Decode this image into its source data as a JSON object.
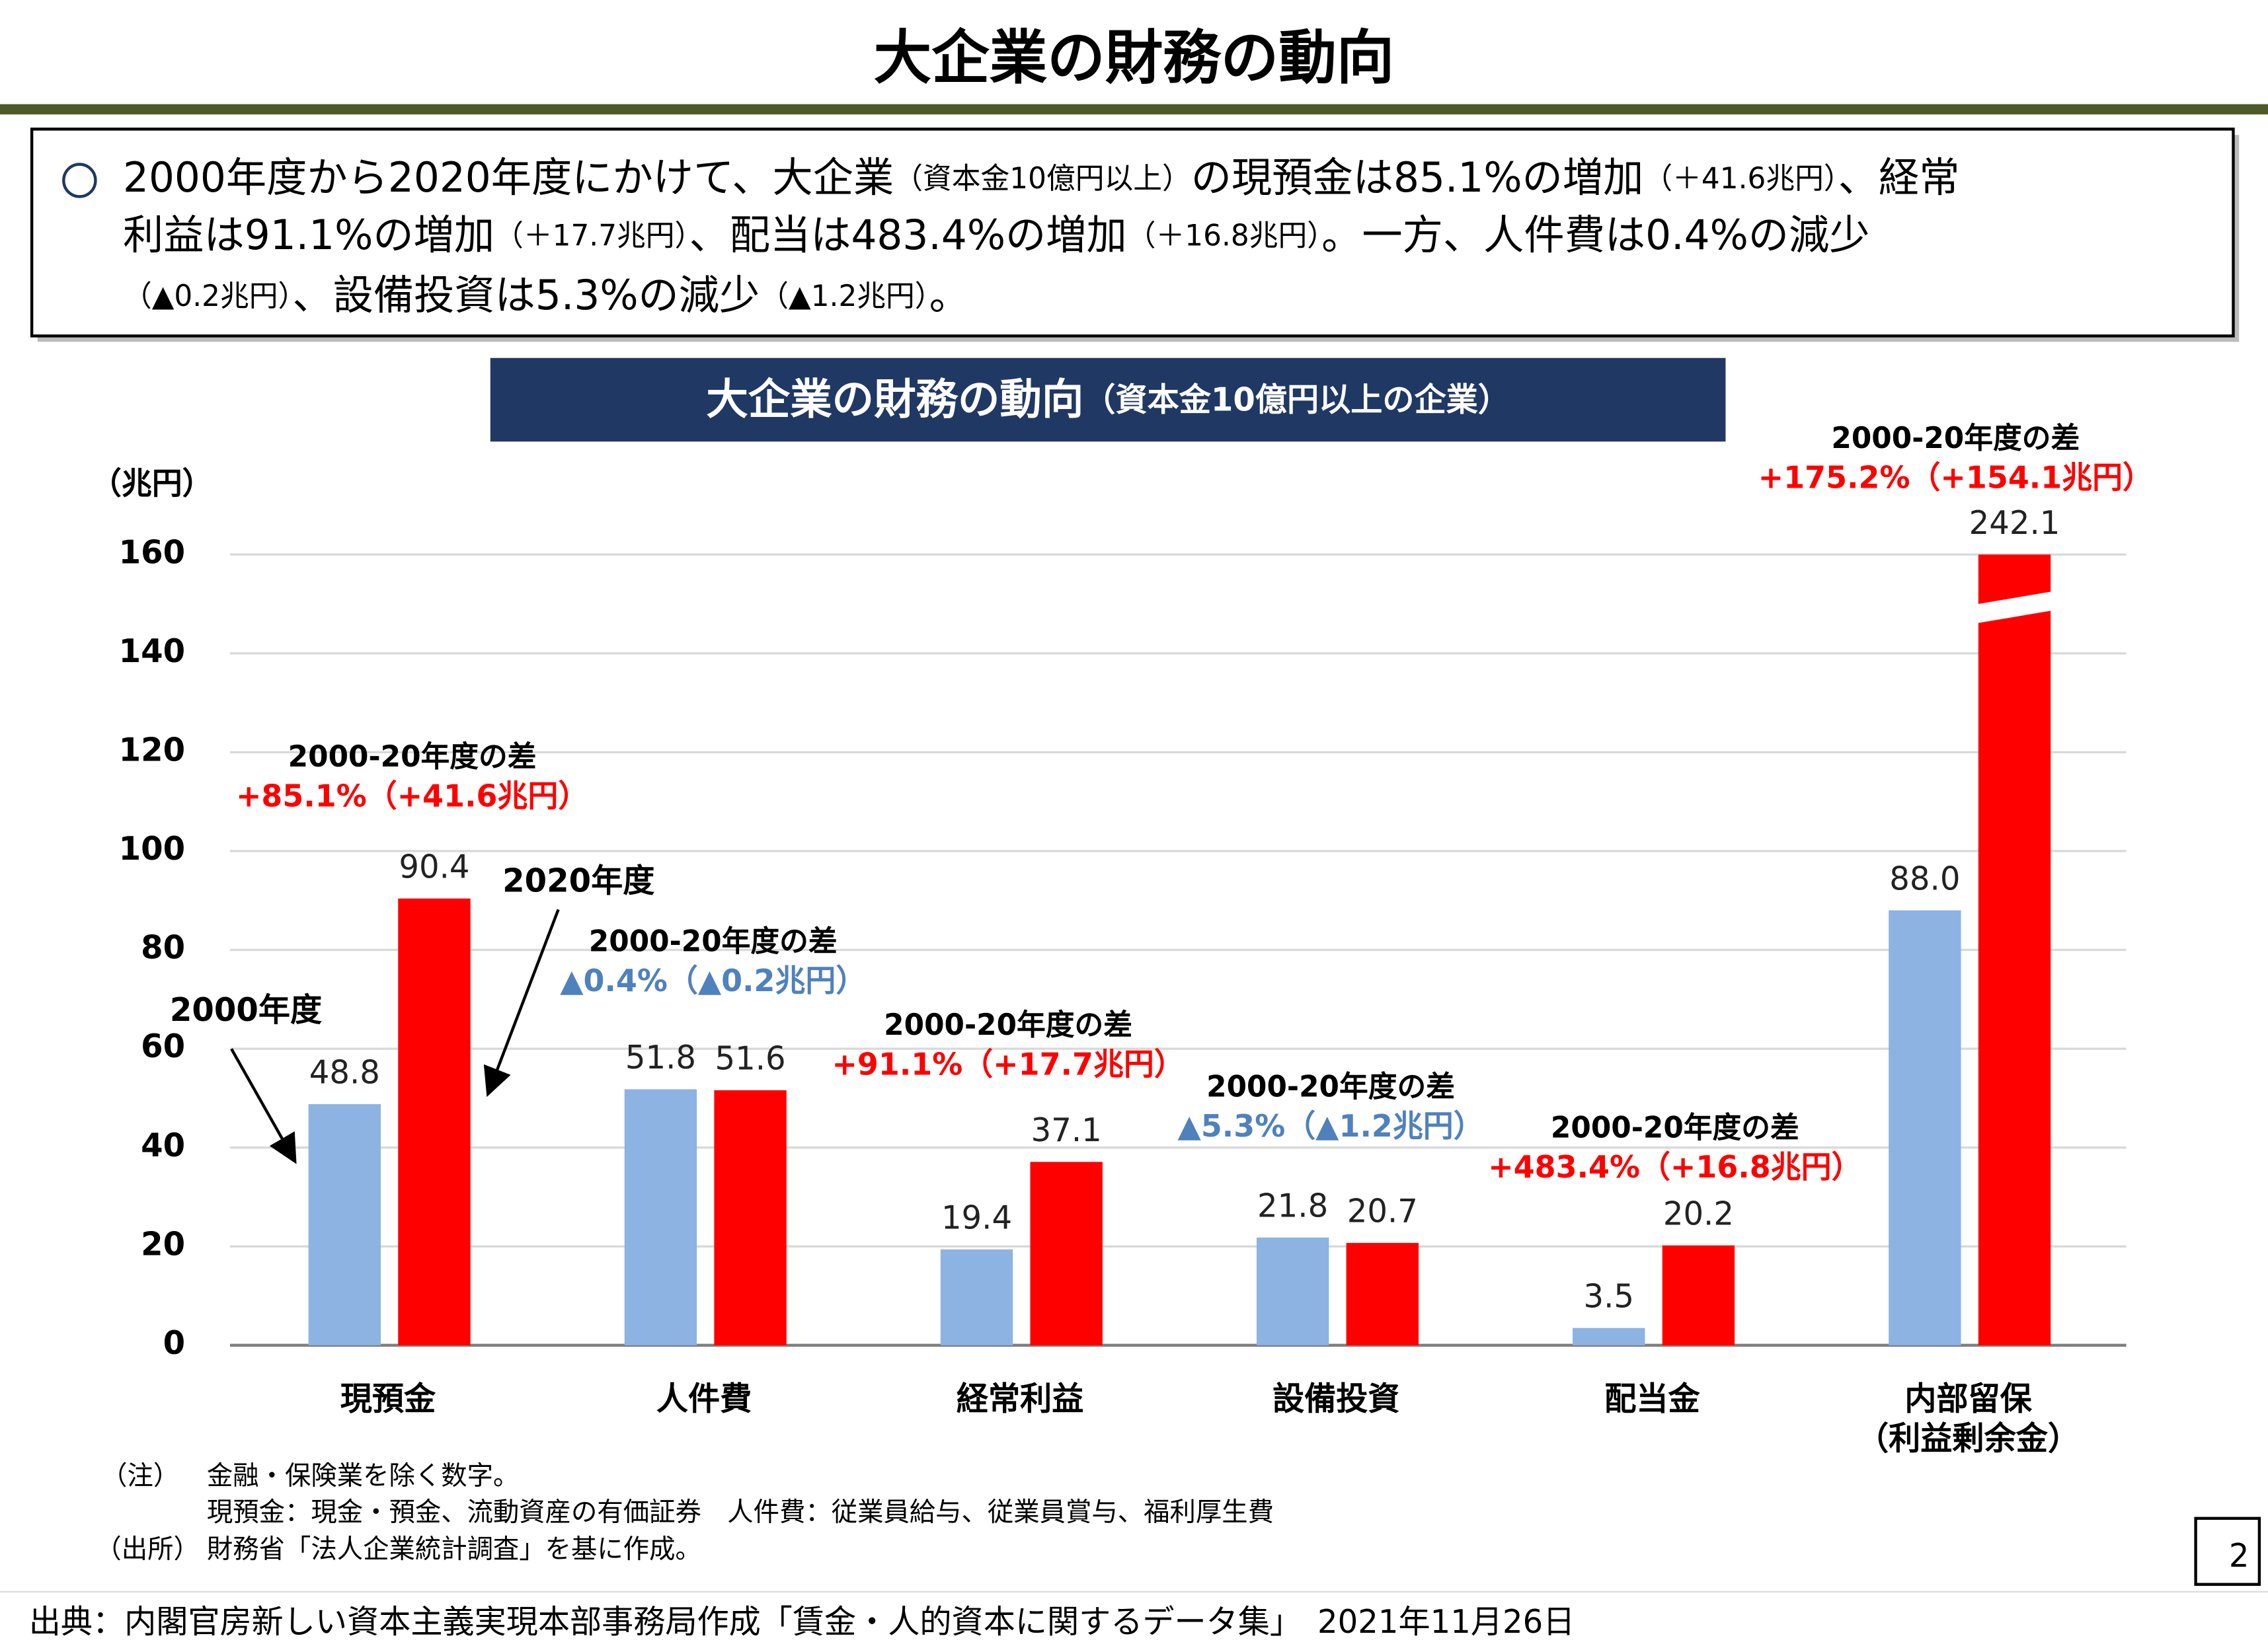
{
  "header": {
    "title": "大企業の財務の動向"
  },
  "summary": [
    [
      "2000年度から2020年度にかけて、大企業",
      "（資本金10億円以上）",
      "の現預金は85.1%の増加",
      "（＋41.6兆円）",
      "、経常"
    ],
    [
      "利益は91.1%の増加",
      "（＋17.7兆円）",
      "、配当は483.4%の増加",
      "（＋16.8兆円）",
      "。一方、人件費は0.4%の減少"
    ],
    [
      "",
      "（▲0.2兆円）",
      "、設備投資は5.3%の減少",
      "（▲1.2兆円）",
      "。"
    ]
  ],
  "chart_data": {
    "type": "bar",
    "title": "大企業の財務の動向",
    "subtitle": "（資本金10億円以上の企業）",
    "y_label": "（兆円）",
    "categories": [
      "現預金",
      "人件費",
      "経常利益",
      "設備投資",
      "配当金",
      "内部留保\n（利益剰余金）"
    ],
    "series": [
      {
        "name": "2000年度",
        "color": "#8db3e2",
        "values": [
          48.8,
          51.8,
          19.4,
          21.8,
          3.5,
          88.0
        ],
        "value_labels": [
          "48.8",
          "51.8",
          "19.4",
          "21.8",
          "3.5",
          "88.0"
        ]
      },
      {
        "name": "2020年度",
        "color": "#ff0000",
        "values": [
          90.4,
          51.6,
          37.1,
          20.7,
          20.2,
          242.1
        ]
      }
    ],
    "ylim": [
      0,
      160
    ],
    "yticks": [
      0,
      20,
      40,
      60,
      80,
      100,
      120,
      140,
      160
    ],
    "grid": true,
    "axis_break": true,
    "annotations": [
      {
        "text": "2000-20年度の差",
        "detail": "+85.1%（+41.6兆円）",
        "color": "#ff0000"
      },
      {
        "text": "2000-20年度の差",
        "detail": "▲0.4%（▲0.2兆円）",
        "color": "#4f81bd"
      },
      {
        "text": "2000-20年度の差",
        "detail": "+91.1%（+17.7兆円）",
        "color": "#ff0000"
      },
      {
        "text": "2000-20年度の差",
        "detail": "▲5.3%（▲1.2兆円）",
        "color": "#4f81bd"
      },
      {
        "text": "2000-20年度の差",
        "detail": "+483.4%（+16.8兆円）",
        "color": "#ff0000"
      },
      {
        "text": "2000-20年度の差",
        "detail": "+175.2%（+154.1兆円）",
        "color": "#ff0000"
      }
    ]
  },
  "notes": {
    "note_label": "（注）",
    "note_lines": [
      "金融・保険業を除く数字。",
      "現預金：現金・預金、流動資産の有価証券　人件費：従業員給与、従業員賞与、福利厚生費"
    ],
    "source_label": "（出所）",
    "source": "財務省「法人企業統計調査」を基に作成。"
  },
  "page_number": "2",
  "footer": "出典：内閣官房新しい資本主義実現本部事務局作成「賃金・人的資本に関するデータ集」　2021年11月26日"
}
